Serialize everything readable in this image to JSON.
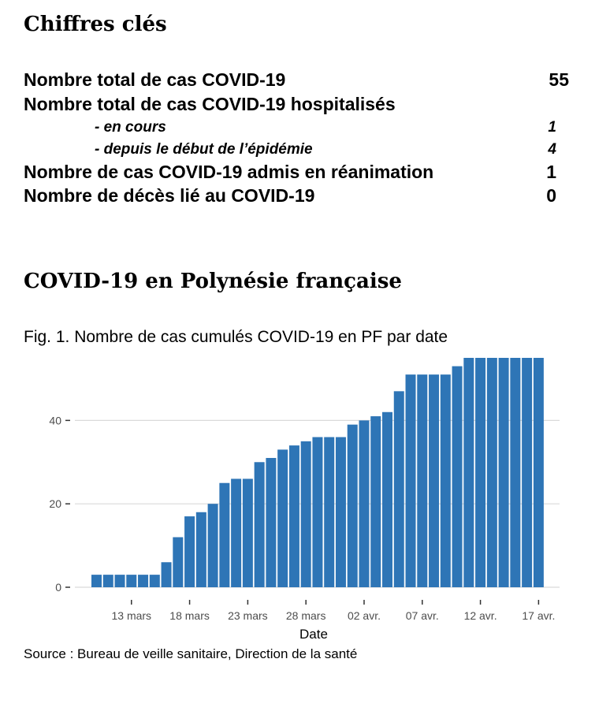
{
  "key_figures": {
    "heading": "Chiffres clés",
    "rows": [
      {
        "label": "Nombre total de cas COVID-19",
        "value": "55"
      },
      {
        "label": "Nombre total de cas COVID-19 hospitalisés",
        "value": ""
      },
      {
        "label": "- en cours",
        "value": "1"
      },
      {
        "label": "- depuis le début de l’épidémie",
        "value": "4"
      },
      {
        "label": "Nombre de cas COVID-19 admis en réanimation",
        "value": "1"
      },
      {
        "label": "Nombre de décès lié au COVID-19",
        "value": "0"
      }
    ]
  },
  "section_title": "COVID-19 en Polynésie française",
  "figure_caption": "Fig. 1. Nombre de cas cumulés COVID-19 en PF par date",
  "source": "Source : Bureau de veille sanitaire, Direction de la santé",
  "chart_data": {
    "type": "bar",
    "title": "Fig. 1. Nombre de cas cumulés COVID-19 en PF par date",
    "xlabel": "Date",
    "ylabel": "",
    "bar_color": "#2e75b6",
    "grid": true,
    "x_ticks": [
      "13 mars",
      "18 mars",
      "23 mars",
      "28 mars",
      "02 avr.",
      "07 avr.",
      "12 avr.",
      "17 avr."
    ],
    "y_ticks": [
      0,
      20,
      40
    ],
    "ylim": [
      0,
      55
    ],
    "categories": [
      "10 mars",
      "11 mars",
      "12 mars",
      "13 mars",
      "14 mars",
      "15 mars",
      "16 mars",
      "17 mars",
      "18 mars",
      "19 mars",
      "20 mars",
      "21 mars",
      "22 mars",
      "23 mars",
      "24 mars",
      "25 mars",
      "26 mars",
      "27 mars",
      "28 mars",
      "29 mars",
      "30 mars",
      "31 mars",
      "01 avr.",
      "02 avr.",
      "03 avr.",
      "04 avr.",
      "05 avr.",
      "06 avr.",
      "07 avr.",
      "08 avr.",
      "09 avr.",
      "10 avr.",
      "11 avr.",
      "12 avr.",
      "13 avr.",
      "14 avr.",
      "15 avr.",
      "16 avr.",
      "17 avr."
    ],
    "values": [
      3,
      3,
      3,
      3,
      3,
      3,
      6,
      12,
      17,
      18,
      20,
      25,
      26,
      26,
      30,
      31,
      33,
      34,
      35,
      36,
      36,
      36,
      39,
      40,
      41,
      42,
      47,
      51,
      51,
      51,
      51,
      53,
      55,
      55,
      55,
      55,
      55,
      55,
      55
    ]
  }
}
